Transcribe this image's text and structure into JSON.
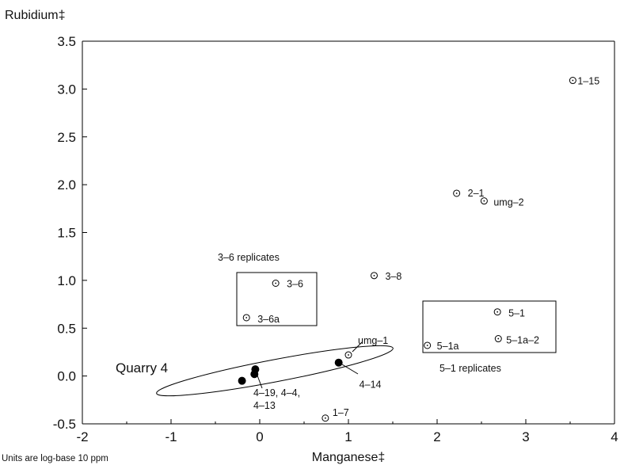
{
  "chart_data": {
    "type": "scatter",
    "ylabel": "Rubidium‡",
    "xlabel": "Manganese‡",
    "note": "Units are log-base 10 ppm",
    "xlim": [
      -2,
      4
    ],
    "ylim": [
      -0.5,
      3.5
    ],
    "x_ticks": [
      "-2",
      "-1",
      "0",
      "1",
      "2",
      "3",
      "4"
    ],
    "y_ticks": [
      "-0.5",
      "0.0",
      "0.5",
      "1.0",
      "1.5",
      "2.0",
      "2.5",
      "3.0",
      "3.5"
    ],
    "grid": false,
    "points": [
      {
        "label": "1–15",
        "x": 3.53,
        "y": 3.09,
        "filled": false
      },
      {
        "label": "2–1",
        "x": 2.22,
        "y": 1.91,
        "filled": false
      },
      {
        "label": "umg–2",
        "x": 2.53,
        "y": 1.83,
        "filled": false
      },
      {
        "label": "3–8",
        "x": 1.29,
        "y": 1.05,
        "filled": false
      },
      {
        "label": "3–6",
        "x": 0.18,
        "y": 0.97,
        "filled": false
      },
      {
        "label": "3–6a",
        "x": -0.15,
        "y": 0.61,
        "filled": false
      },
      {
        "label": "5–1",
        "x": 2.68,
        "y": 0.67,
        "filled": false
      },
      {
        "label": "5–1a",
        "x": 1.89,
        "y": 0.32,
        "filled": false
      },
      {
        "label": "5–1a–2",
        "x": 2.69,
        "y": 0.39,
        "filled": false
      },
      {
        "label": "umg–1",
        "x": 1.0,
        "y": 0.22,
        "filled": false
      },
      {
        "label": "1–7",
        "x": 0.74,
        "y": -0.44,
        "filled": false
      },
      {
        "label": "4–14",
        "x": 0.89,
        "y": 0.14,
        "filled": true
      },
      {
        "label": "",
        "x": -0.05,
        "y": 0.07,
        "filled": true
      },
      {
        "label": "",
        "x": -0.06,
        "y": 0.02,
        "filled": true
      },
      {
        "label": "",
        "x": -0.2,
        "y": -0.05,
        "filled": true
      }
    ],
    "group_label": "4–19, 4–4, 4–13",
    "annotations": {
      "replicates_3_6": "3–6 replicates",
      "replicates_5_1": "5–1 replicates",
      "quarry": "Quarry 4"
    }
  }
}
